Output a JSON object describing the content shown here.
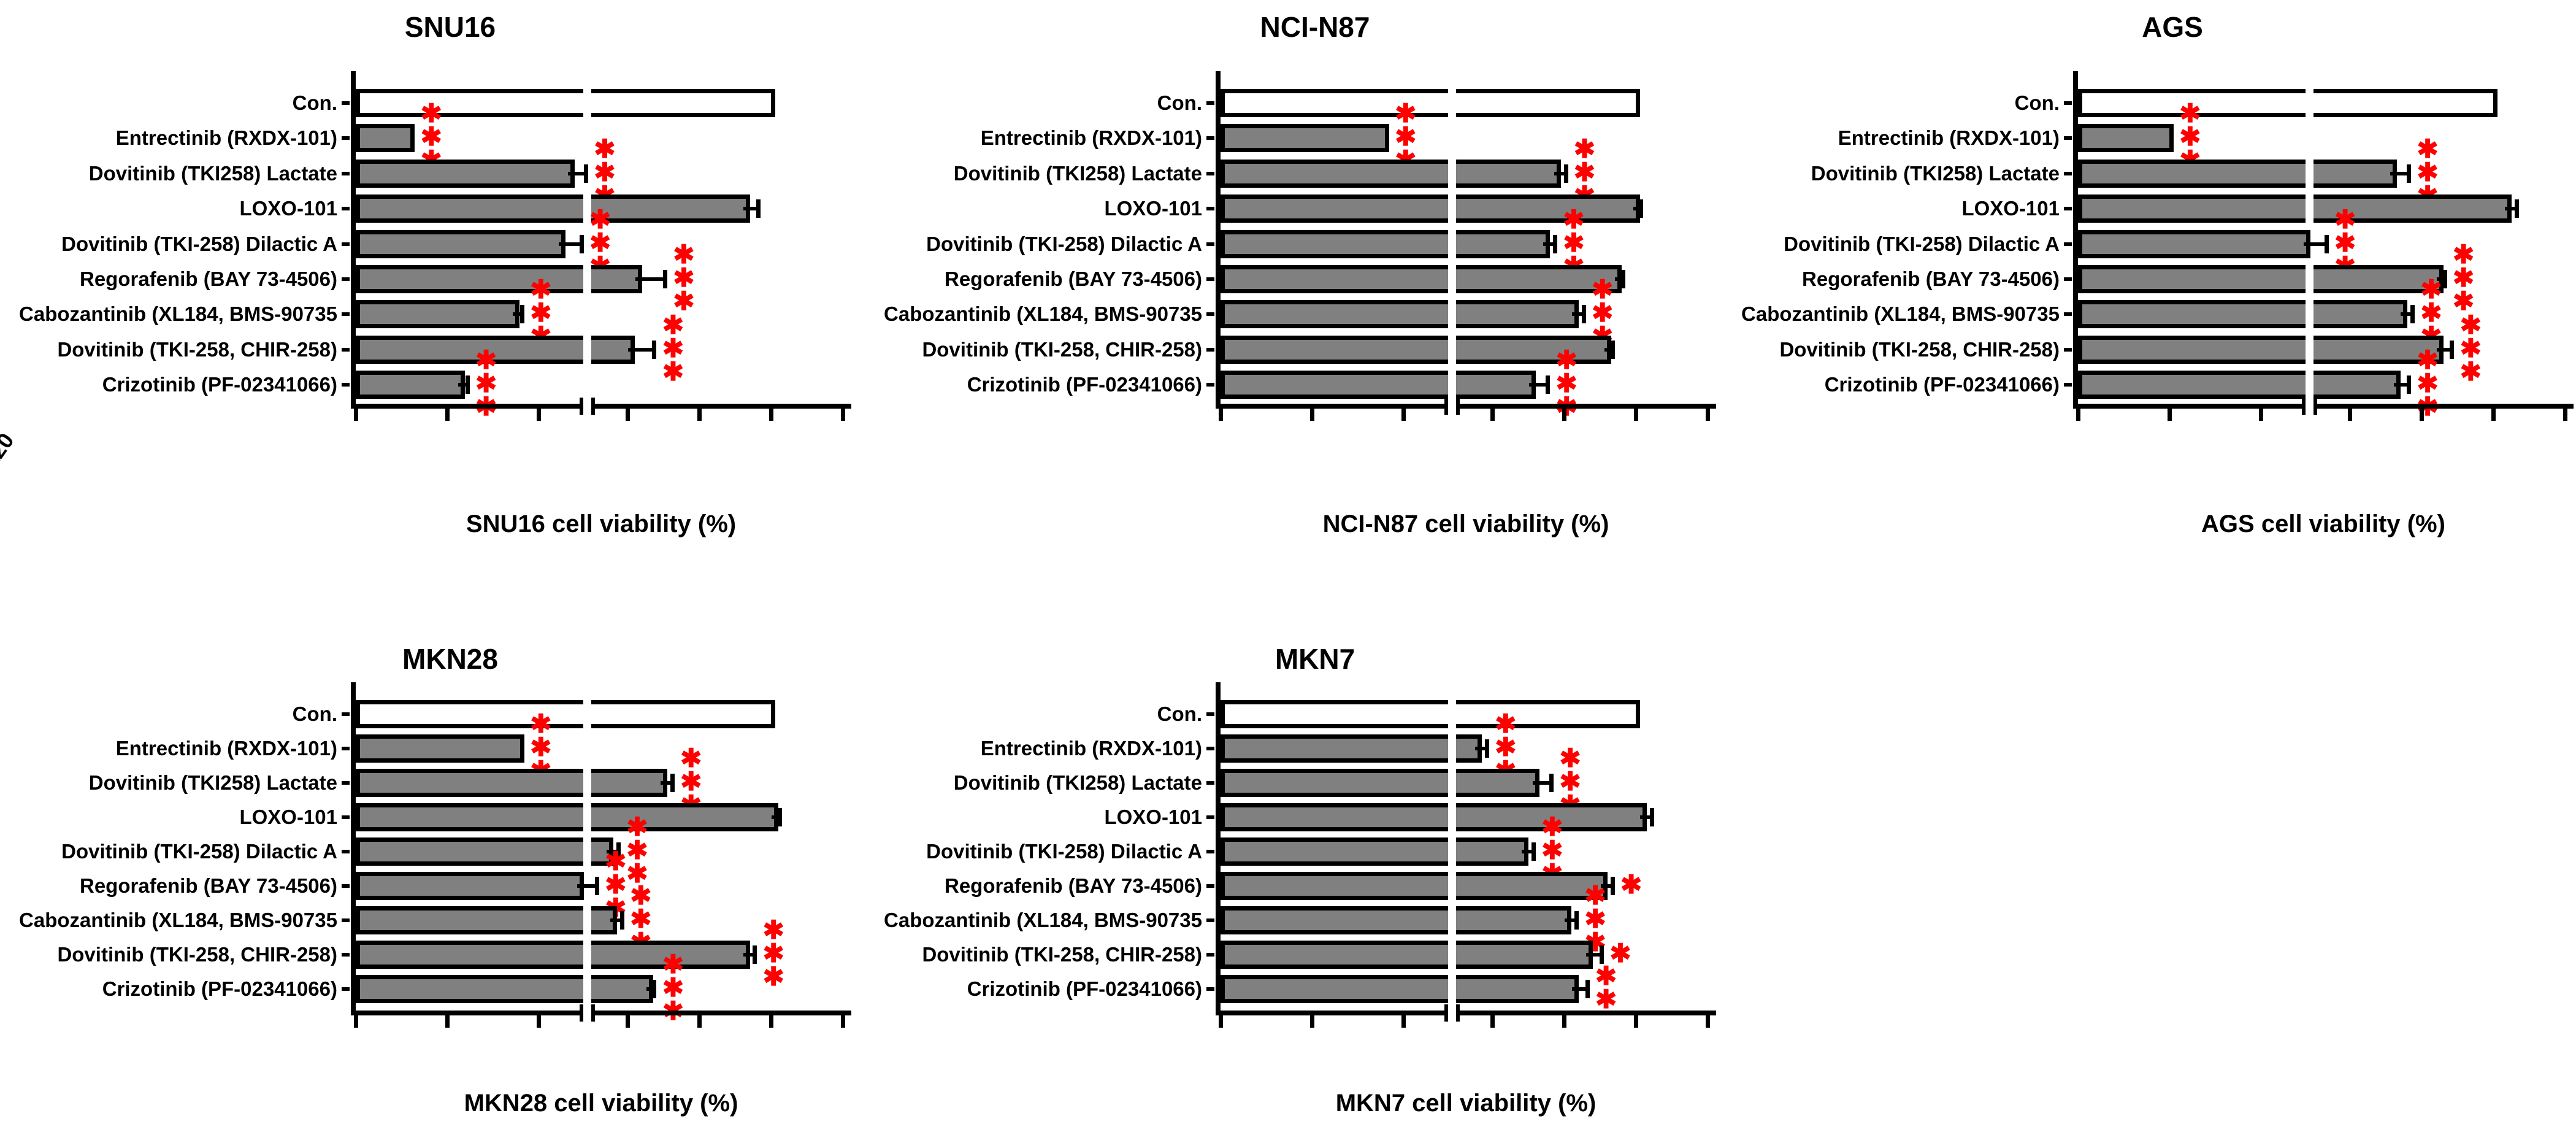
{
  "figure": {
    "description_visible_text_only": "Five horizontal bar charts of drug cell viability with axis break between 50 and 55",
    "star_color": "#ff0000",
    "bar_fill": "#808080",
    "control_fill": "#ffffff",
    "outline_color": "#000000",
    "background": "#ffffff"
  },
  "chart_data": [
    {
      "id": "snu16",
      "type": "bar",
      "orientation": "horizontal",
      "title": "SNU16",
      "xlabel": "SNU16 cell viability (%)",
      "xlim": [
        0,
        120
      ],
      "xticks": [
        0,
        20,
        40,
        60,
        80,
        100,
        120
      ],
      "axis_break": {
        "from": 50,
        "to": 55
      },
      "grid": false,
      "legend": "none",
      "categories": [
        "Con.",
        "Entrectinib (RXDX-101)",
        "Dovitinib (TKI258) Lactate",
        "LOXO-101",
        "Dovitinib (TKI-258) Dilactic A",
        "Regorafenib (BAY 73-4506)",
        "Cabozantinib (XL184, BMS-90735",
        "Dovitinib (TKI-258, CHIR-258)",
        "Crizotinib (PF-02341066)"
      ],
      "values": [
        100,
        12,
        47,
        93,
        45,
        63,
        35,
        61,
        23
      ],
      "errors": [
        0,
        0,
        3,
        3,
        4,
        7,
        1,
        6,
        1
      ],
      "significance": [
        "",
        "***",
        "***",
        "",
        "***",
        "***",
        "***",
        "***",
        "***"
      ],
      "control_index": 0
    },
    {
      "id": "nci-n87",
      "type": "bar",
      "orientation": "horizontal",
      "title": "NCI-N87",
      "xlabel": "NCI-N87 cell viability (%)",
      "xlim": [
        0,
        120
      ],
      "xticks": [
        0,
        20,
        40,
        60,
        80,
        100,
        120
      ],
      "axis_break": {
        "from": 50,
        "to": 55
      },
      "grid": false,
      "legend": "none",
      "categories": [
        "Con.",
        "Entrectinib (RXDX-101)",
        "Dovitinib (TKI258) Lactate",
        "LOXO-101",
        "Dovitinib (TKI-258) Dilactic A",
        "Regorafenib (BAY 73-4506)",
        "Cabozantinib (XL184, BMS-90735",
        "Dovitinib (TKI-258, CHIR-258)",
        "Crizotinib (PF-02341066)"
      ],
      "values": [
        100,
        36,
        78,
        100,
        75,
        95,
        83,
        92,
        71
      ],
      "errors": [
        0,
        0,
        2,
        1,
        2,
        1,
        2,
        1,
        4
      ],
      "significance": [
        "",
        "***",
        "***",
        "",
        "***",
        "",
        "***",
        "",
        "***"
      ],
      "control_index": 0
    },
    {
      "id": "ags",
      "type": "bar",
      "orientation": "horizontal",
      "title": "AGS",
      "xlabel": "AGS cell viability (%)",
      "xlim": [
        0,
        120
      ],
      "xticks": [
        0,
        20,
        40,
        60,
        80,
        100,
        120
      ],
      "axis_break": {
        "from": 50,
        "to": 55
      },
      "grid": false,
      "legend": "none",
      "categories": [
        "Con.",
        "Entrectinib (RXDX-101)",
        "Dovitinib (TKI258) Lactate",
        "LOXO-101",
        "Dovitinib (TKI-258) Dilactic A",
        "Regorafenib (BAY 73-4506)",
        "Cabozantinib (XL184, BMS-90735",
        "Dovitinib (TKI-258, CHIR-258)",
        "Crizotinib (PF-02341066)"
      ],
      "values": [
        100,
        20,
        72,
        104,
        50,
        85,
        75,
        85,
        73
      ],
      "errors": [
        0,
        0,
        4,
        2,
        3,
        1,
        2,
        3,
        3
      ],
      "significance": [
        "",
        "***",
        "***",
        "",
        "***",
        "***",
        "***",
        "***",
        "***"
      ],
      "control_index": 0
    },
    {
      "id": "mkn28",
      "type": "bar",
      "orientation": "horizontal",
      "title": "MKN28",
      "xlabel": "MKN28 cell viability (%)",
      "xlim": [
        0,
        120
      ],
      "xticks": [
        0,
        20,
        40,
        60,
        80,
        100,
        120
      ],
      "axis_break": {
        "from": 50,
        "to": 55
      },
      "grid": false,
      "legend": "none",
      "categories": [
        "Con.",
        "Entrectinib (RXDX-101)",
        "Dovitinib (TKI258) Lactate",
        "LOXO-101",
        "Dovitinib (TKI-258) Dilactic A",
        "Regorafenib (BAY 73-4506)",
        "Cabozantinib (XL184, BMS-90735",
        "Dovitinib (TKI-258, CHIR-258)",
        "Crizotinib (PF-02341066)"
      ],
      "values": [
        100,
        36,
        70,
        101,
        55,
        49,
        56,
        93,
        66
      ],
      "errors": [
        0,
        0,
        2,
        1,
        2,
        2,
        2,
        2,
        1
      ],
      "significance": [
        "",
        "***",
        "***",
        "",
        "***",
        "***",
        "***",
        "***",
        "***"
      ],
      "control_index": 0
    },
    {
      "id": "mkn7",
      "type": "bar",
      "orientation": "horizontal",
      "title": "MKN7",
      "xlabel": "MKN7 cell viability (%)",
      "xlim": [
        0,
        120
      ],
      "xticks": [
        0,
        20,
        40,
        60,
        80,
        100,
        120
      ],
      "axis_break": {
        "from": 50,
        "to": 55
      },
      "grid": false,
      "legend": "none",
      "categories": [
        "Con.",
        "Entrectinib (RXDX-101)",
        "Dovitinib (TKI258) Lactate",
        "LOXO-101",
        "Dovitinib (TKI-258) Dilactic A",
        "Regorafenib (BAY 73-4506)",
        "Cabozantinib (XL184, BMS-90735",
        "Dovitinib (TKI-258, CHIR-258)",
        "Crizotinib (PF-02341066)"
      ],
      "values": [
        100,
        56,
        72,
        102,
        69,
        91,
        81,
        87,
        83
      ],
      "errors": [
        0,
        2,
        4,
        2,
        2,
        2,
        2,
        3,
        3
      ],
      "significance": [
        "",
        "***",
        "***",
        "",
        "***",
        "*",
        "***",
        "*",
        "**"
      ],
      "control_index": 0
    }
  ]
}
